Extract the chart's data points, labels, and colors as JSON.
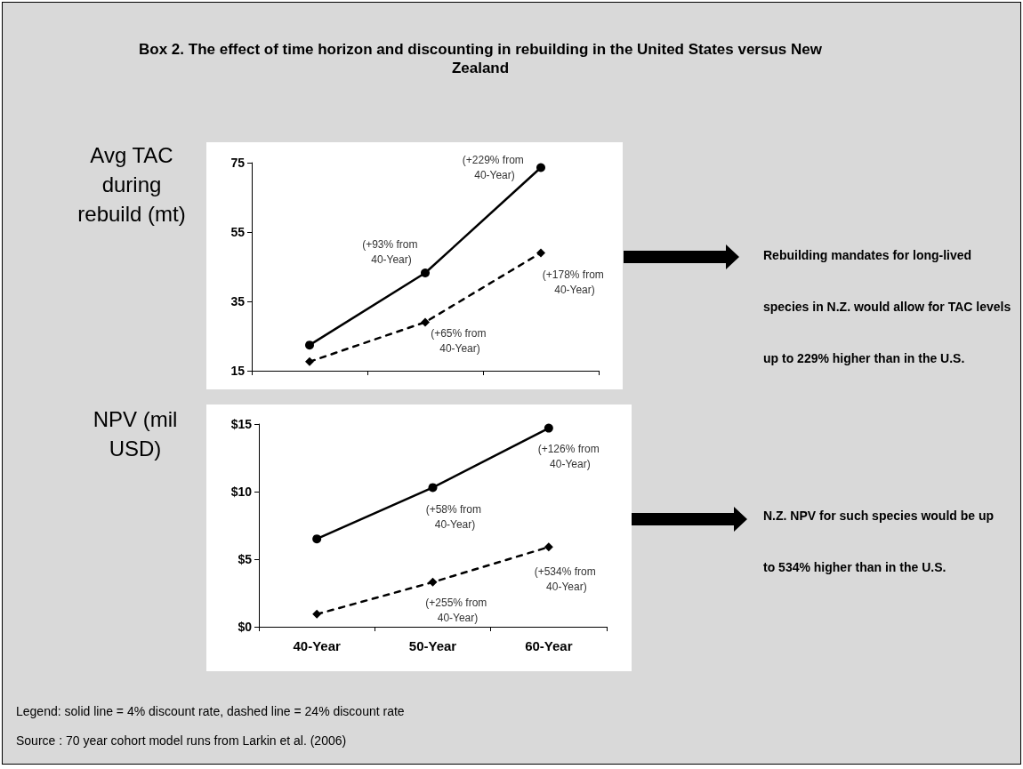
{
  "chart_data": [
    {
      "type": "line",
      "title": "Box 2. The effect of time horizon and discounting in rebuilding in the United States versus New Zealand",
      "ylabel": "Avg TAC during rebuild (mt)",
      "categories": [
        "40-Year",
        "50-Year",
        "60-Year"
      ],
      "series": [
        {
          "color": "#000000",
          "values": [
            22.4,
            43.2,
            73.6
          ],
          "marker": "circle",
          "line_style": "solid"
        },
        {
          "color": "#000000",
          "values": [
            17.6,
            29.0,
            49.0
          ],
          "marker": "diamond",
          "line_style": "dashed"
        }
      ],
      "ylim": [
        15,
        75
      ],
      "yticks": [
        15,
        35,
        55,
        75
      ],
      "grid": false,
      "tick_labels": "y",
      "annotations": [
        {
          "text": "(+93% from 40-Year)",
          "x": "50-Year",
          "y": 43.2
        },
        {
          "text": "(+229% from 40-Year)",
          "x": "60-Year",
          "y": 73.6
        },
        {
          "text": "(+65% from 40-Year)",
          "x": "50-Year",
          "y": 29.0
        },
        {
          "text": "(+178% from 40-Year)",
          "x": "60-Year",
          "y": 49.0
        },
        "Rebuilding mandates for long-lived species in N.Z. would allow for TAC levels up to 229% higher than in the U.S."
      ]
    },
    {
      "type": "line",
      "ylabel": "NPV (mil USD)",
      "categories": [
        "40-Year",
        "50-Year",
        "60-Year"
      ],
      "series": [
        {
          "color": "#000000",
          "values": [
            6.5,
            10.3,
            14.7
          ],
          "marker": "circle",
          "line_style": "solid"
        },
        {
          "color": "#000000",
          "values": [
            0.93,
            3.3,
            5.9
          ],
          "marker": "diamond",
          "line_style": "dashed"
        }
      ],
      "ylim": [
        0,
        15
      ],
      "yticks": [
        {
          "value": 0,
          "label": "$0"
        },
        {
          "value": 5,
          "label": "$5"
        },
        {
          "value": 10,
          "label": "$10"
        },
        {
          "value": 15,
          "label": "$15"
        }
      ],
      "grid": false,
      "annotations": [
        {
          "text": "(+58% from 40-Year)",
          "x": "50-Year",
          "y": 10.3
        },
        {
          "text": "(+126% from 40-Year)",
          "x": "60-Year",
          "y": 14.7
        },
        {
          "text": "(+255% from 40-Year)",
          "x": "50-Year",
          "y": 3.3
        },
        {
          "text": "(+534% from 40-Year)",
          "x": "60-Year",
          "y": 5.9
        },
        "N.Z. NPV for such species would be up to 534% higher than in the U.S.",
        "Legend: solid line = 4% discount rate, dashed line = 24% discount rate",
        "Source : 70 year cohort model runs from Larkin et al. (2006)"
      ]
    }
  ]
}
